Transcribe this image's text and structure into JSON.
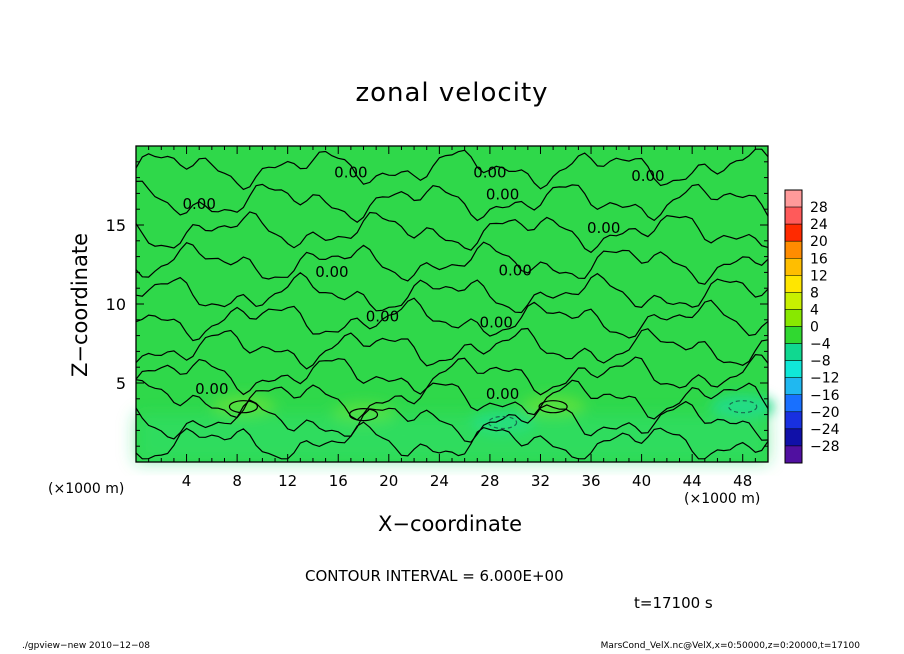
{
  "chart_data": {
    "type": "heatmap",
    "title": "zonal velocity",
    "xlabel": "X−coordinate",
    "ylabel": "Z−coordinate",
    "x_unit_label": "(×1000 m)",
    "y_unit_label": "(×1000 m)",
    "xlim": [
      0,
      50
    ],
    "ylim": [
      0,
      20
    ],
    "x_ticks": [
      4,
      8,
      12,
      16,
      20,
      24,
      28,
      32,
      36,
      40,
      44,
      48
    ],
    "y_ticks": [
      5,
      10,
      15
    ],
    "contour_interval_text": "CONTOUR INTERVAL = 6.000E+00",
    "contour_labels": [
      "0.00",
      "0.00",
      "0.00",
      "0.00",
      "0.00",
      "0.00",
      "0.00",
      "0.00",
      "0.00",
      "0.00",
      "0.00",
      "0.00"
    ],
    "colorbar": {
      "levels": [
        "28",
        "24",
        "20",
        "16",
        "12",
        "8",
        "4",
        "0",
        "−4",
        "−8",
        "−12",
        "−16",
        "−20",
        "−24",
        "−28"
      ],
      "colors": [
        "#ff9a9a",
        "#ff5a5a",
        "#ff2a00",
        "#ff8c00",
        "#ffbe00",
        "#ffe600",
        "#c8f000",
        "#88e800",
        "#30d830",
        "#10d890",
        "#10e8d8",
        "#20b8f0",
        "#1870ff",
        "#1830e0",
        "#1010a8",
        "#5010a0"
      ]
    },
    "field_note_color": "#2fd84a",
    "anomalies": [
      {
        "x": 8.5,
        "z": 3.5,
        "sign": "positive"
      },
      {
        "x": 18,
        "z": 3,
        "sign": "positive"
      },
      {
        "x": 33,
        "z": 3.5,
        "sign": "positive"
      },
      {
        "x": 48,
        "z": 3.5,
        "sign": "negative"
      },
      {
        "x": 29,
        "z": 2.5,
        "sign": "negative"
      }
    ]
  },
  "time_label": "t=17100 s",
  "footer_left": "./gpview−new  2010−12−08",
  "footer_right": "MarsCond_VelX.nc@VelX,x=0:50000,z=0:20000,t=17100"
}
